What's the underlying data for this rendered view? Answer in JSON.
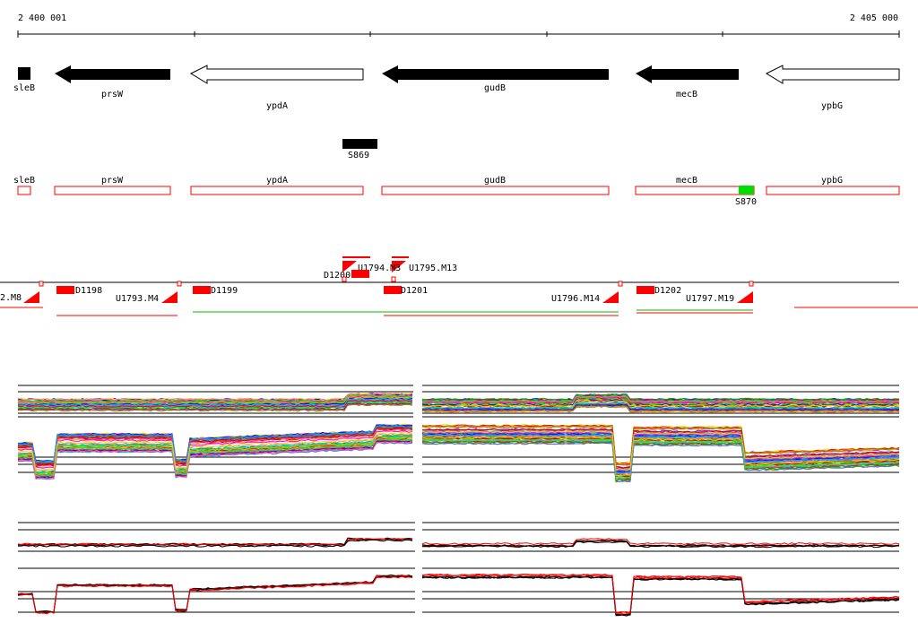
{
  "ruler": {
    "start_label": "2 400 001",
    "end_label": "2 405 000"
  },
  "genes": [
    {
      "name": "sleB",
      "filled": true,
      "strand": "-"
    },
    {
      "name": "prsW",
      "filled": true,
      "strand": "-"
    },
    {
      "name": "ypdA",
      "filled": false,
      "strand": "-"
    },
    {
      "name": "gudB",
      "filled": true,
      "strand": "-"
    },
    {
      "name": "mecB",
      "filled": true,
      "strand": "-"
    },
    {
      "name": "ypbG",
      "filled": false,
      "strand": "-"
    }
  ],
  "features_black": [
    {
      "name": "S869"
    }
  ],
  "annotation_track": [
    {
      "name": "sleB"
    },
    {
      "name": "prsW"
    },
    {
      "name": "ypdA"
    },
    {
      "name": "gudB"
    },
    {
      "name": "mecB"
    },
    {
      "name": "ypbG"
    }
  ],
  "features_green": [
    {
      "name": "S870"
    }
  ],
  "transcript_labels": {
    "left_cut": "2.M8",
    "d1198": "D1198",
    "u1793": "U1793.M4",
    "d1199": "D1199",
    "d1200": "D1200",
    "u1794": "U1794.M3",
    "u1795": "U1795.M13",
    "d1201": "D1201",
    "u1796": "U1796.M14",
    "d1202": "D1202",
    "u1797": "U1797.M19"
  },
  "colors": {
    "gene_fill": "#000000",
    "annotation_outline": "#ff0000",
    "promoter": "#ff0000",
    "green_feature": "#00dd00",
    "track_line": "#000000",
    "expression_main": "#ff0000"
  }
}
